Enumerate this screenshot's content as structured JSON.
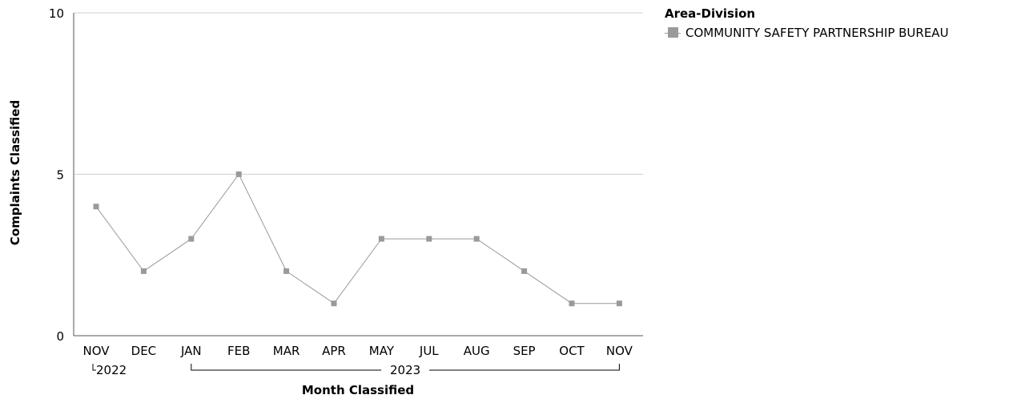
{
  "chart_data": {
    "type": "line",
    "title": "",
    "xlabel": "Month Classified",
    "ylabel": "Complaints Classified",
    "ylim": [
      0,
      10
    ],
    "yticks": [
      0,
      5,
      10
    ],
    "grid": true,
    "categories": [
      "NOV",
      "DEC",
      "JAN",
      "FEB",
      "MAR",
      "APR",
      "MAY",
      "JUL",
      "AUG",
      "SEP",
      "OCT",
      "NOV"
    ],
    "year_groups": [
      {
        "label": "2022",
        "categories": [
          "NOV",
          "DEC"
        ]
      },
      {
        "label": "2023",
        "categories": [
          "JAN",
          "FEB",
          "MAR",
          "APR",
          "MAY",
          "JUL",
          "AUG",
          "SEP",
          "OCT",
          "NOV"
        ]
      }
    ],
    "series": [
      {
        "name": "COMMUNITY SAFETY PARTNERSHIP BUREAU",
        "color": "#9a9a9a",
        "values": [
          4,
          2,
          3,
          5,
          2,
          1,
          3,
          3,
          3,
          2,
          1,
          1
        ]
      }
    ],
    "legend": {
      "title": "Area-Division",
      "position": "top-right"
    }
  }
}
